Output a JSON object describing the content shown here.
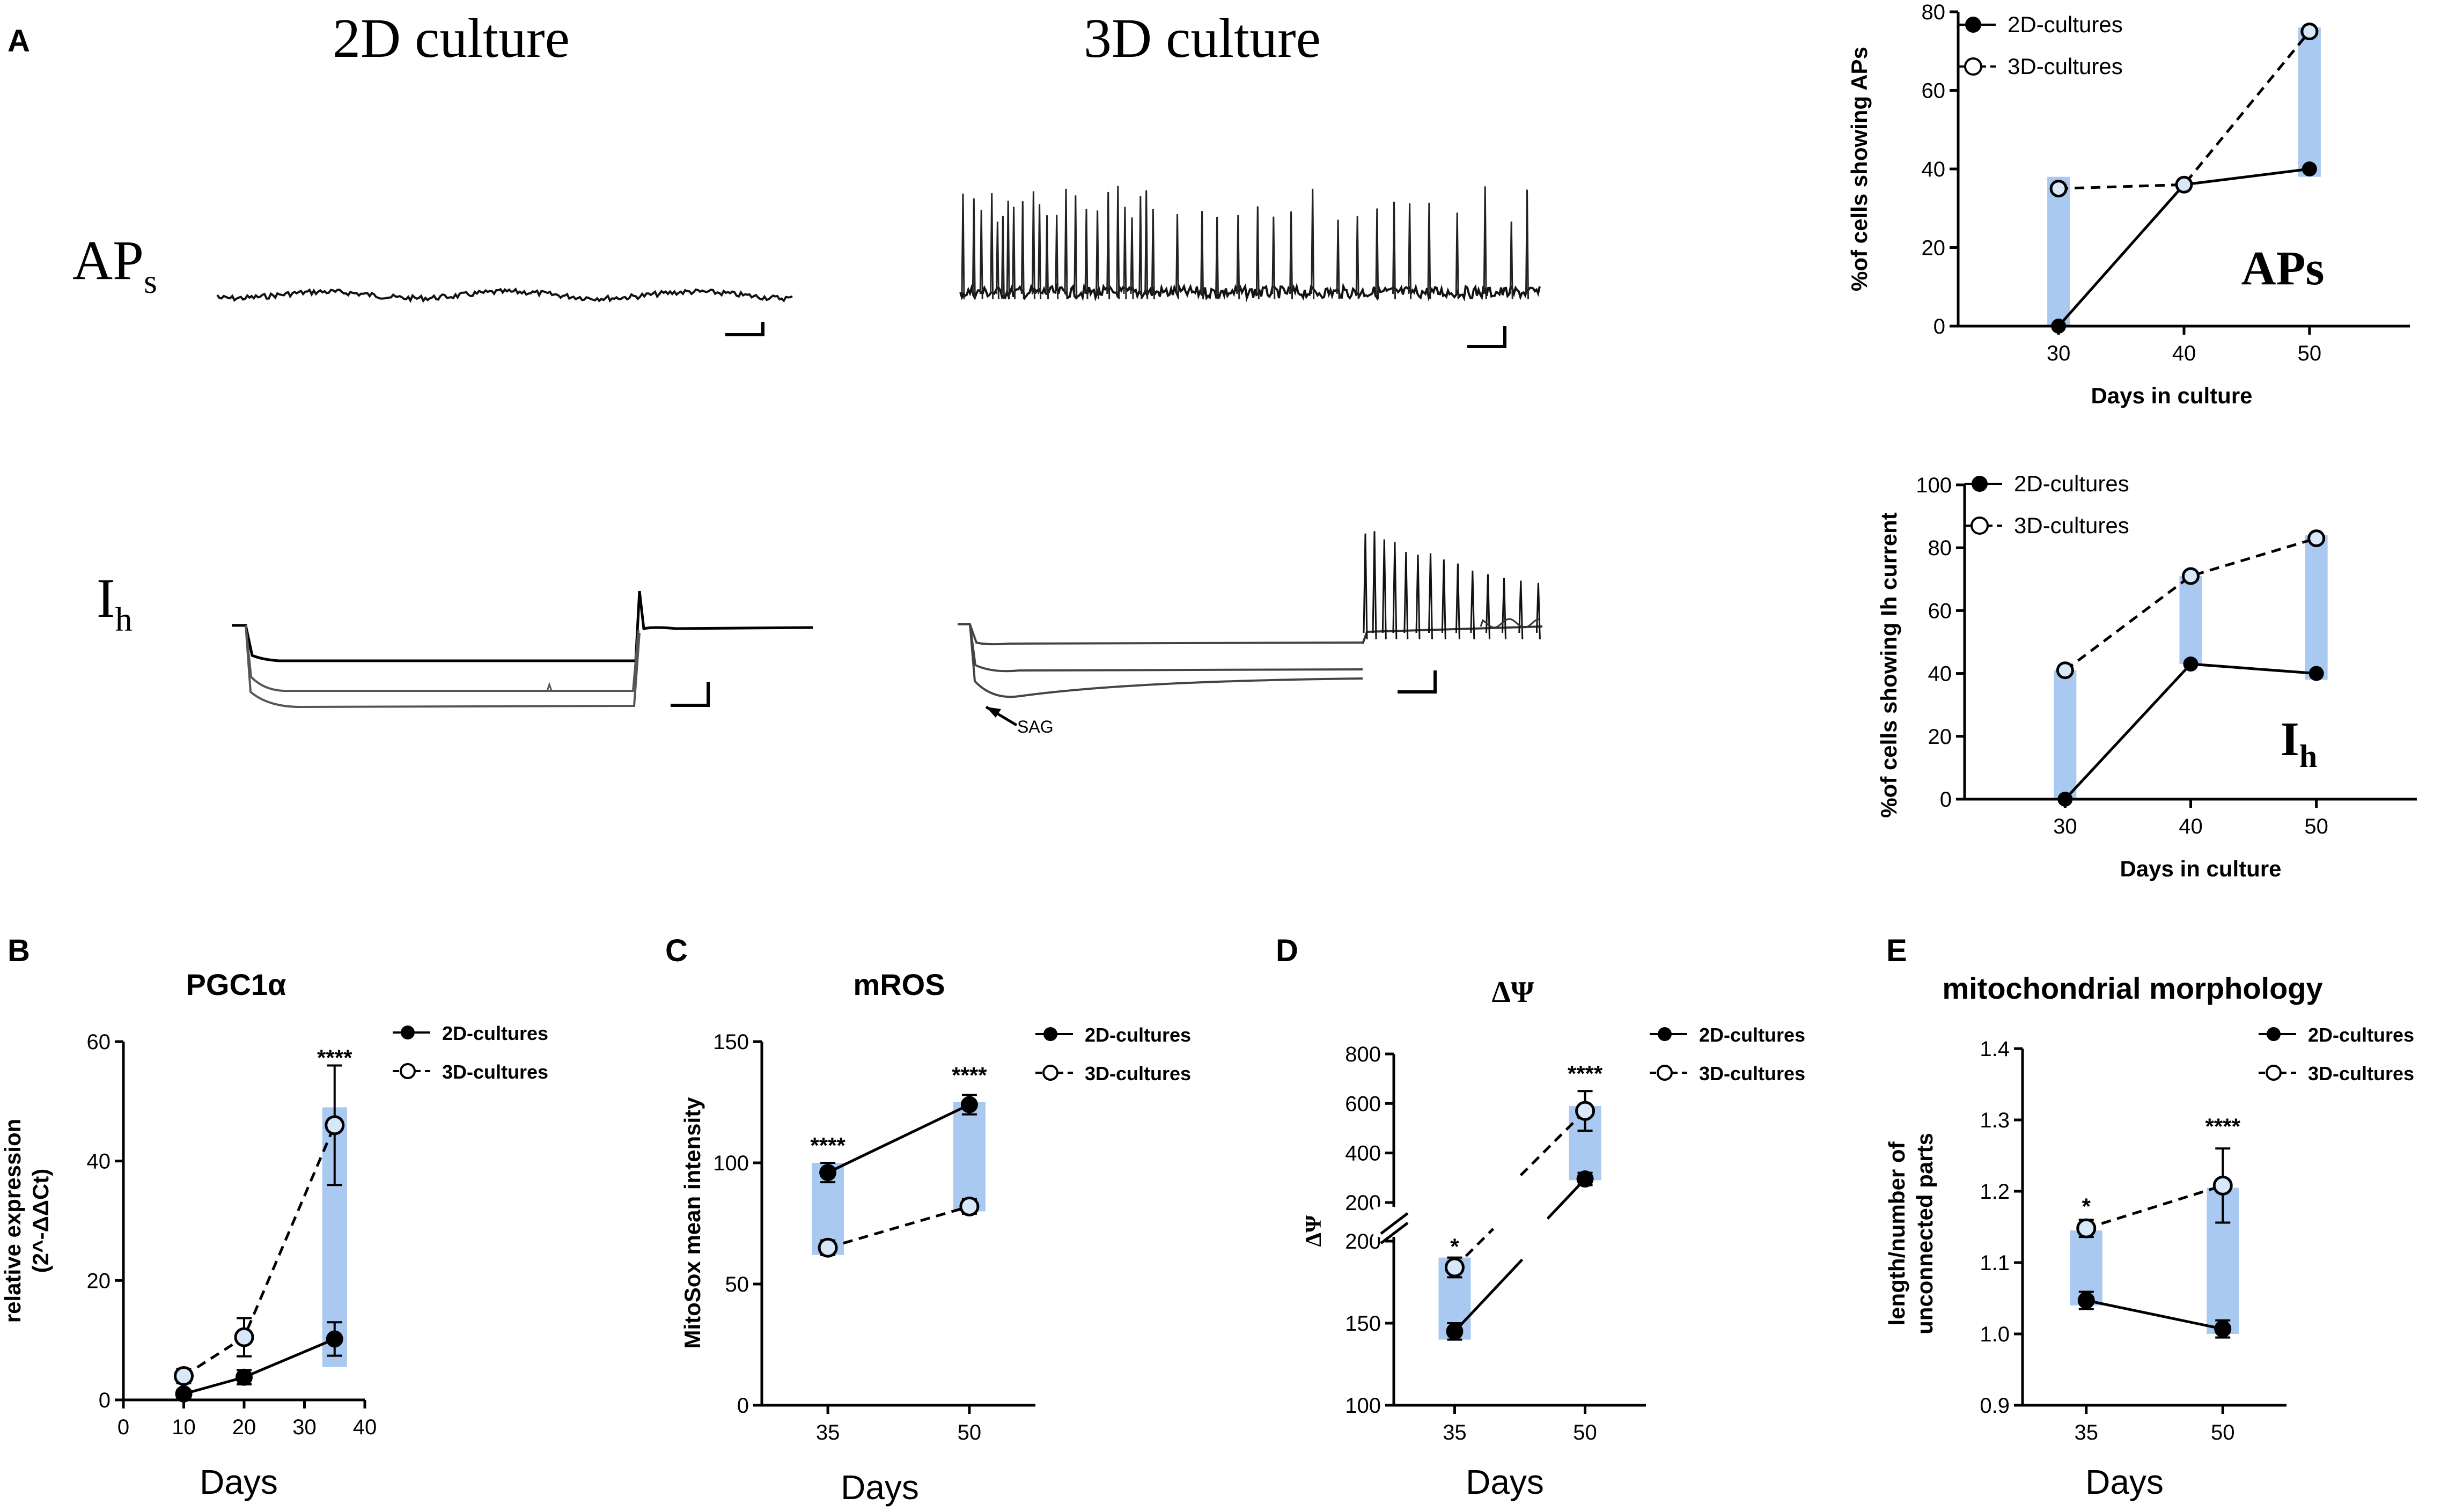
{
  "panel_labels": {
    "A": "A",
    "B": "B",
    "C": "C",
    "D": "D",
    "E": "E"
  },
  "traces": {
    "culture_2d": "2D culture",
    "culture_3d": "3D culture",
    "aps_row": "AP",
    "aps_sub": "s",
    "ih_row": "I",
    "ih_sub": "h",
    "sag": "SAG"
  },
  "colors": {
    "highlight": "#a9c9f0",
    "line": "#000000",
    "open_fill": "#d8e8f8"
  },
  "chart_data": [
    {
      "id": "aps",
      "type": "line",
      "title": "APs",
      "xlabel": "Days in culture",
      "ylabel": "%of cells showing APs",
      "x": [
        30,
        40,
        50
      ],
      "xlim": [
        22,
        58
      ],
      "ylim": [
        0,
        80
      ],
      "xticks": [
        "30",
        "40",
        "50"
      ],
      "yticks": [
        "0",
        "20",
        "40",
        "60",
        "80"
      ],
      "series": [
        {
          "name": "2D-cultures",
          "style": "solid-filled",
          "values": [
            0,
            36,
            40
          ]
        },
        {
          "name": "3D-cultures",
          "style": "dashed-open",
          "values": [
            35,
            36,
            75
          ]
        }
      ],
      "highlights": [
        {
          "x": 30,
          "from": 0,
          "to": 38
        },
        {
          "x": 50,
          "from": 38,
          "to": 76
        }
      ]
    },
    {
      "id": "ih",
      "type": "line",
      "title": "I",
      "title_sub": "h",
      "xlabel": "Days in culture",
      "ylabel": "%of cells showing Ih current",
      "x": [
        30,
        40,
        50
      ],
      "xlim": [
        22,
        58
      ],
      "ylim": [
        0,
        100
      ],
      "xticks": [
        "30",
        "40",
        "50"
      ],
      "yticks": [
        "0",
        "20",
        "40",
        "60",
        "80",
        "100"
      ],
      "series": [
        {
          "name": "2D-cultures",
          "style": "solid-filled",
          "values": [
            0,
            43,
            40
          ]
        },
        {
          "name": "3D-cultures",
          "style": "dashed-open",
          "values": [
            41,
            71,
            83
          ]
        }
      ],
      "highlights": [
        {
          "x": 30,
          "from": 0,
          "to": 41
        },
        {
          "x": 40,
          "from": 43,
          "to": 71
        },
        {
          "x": 50,
          "from": 38,
          "to": 84
        }
      ]
    },
    {
      "id": "pgc",
      "type": "line",
      "title": "PGC1α",
      "xlabel": "Days",
      "ylabel": "relative expression",
      "ylabel2": "(2^-ΔΔCt)",
      "x": [
        10,
        20,
        35
      ],
      "xlim": [
        0,
        40
      ],
      "ylim": [
        0,
        60
      ],
      "xticks": [
        "0",
        "10",
        "20",
        "30",
        "40"
      ],
      "yticks": [
        "0",
        "20",
        "40",
        "60"
      ],
      "series": [
        {
          "name": "2D-cultures",
          "style": "solid-filled",
          "values": [
            1,
            3.8,
            10.2
          ],
          "errors": [
            0.6,
            1.2,
            2.8
          ]
        },
        {
          "name": "3D-cultures",
          "style": "dashed-open",
          "values": [
            4,
            10.5,
            46
          ],
          "errors": [
            1.2,
            3.2,
            10
          ]
        }
      ],
      "highlights": [
        {
          "x": 35,
          "from": 5.5,
          "to": 49
        }
      ],
      "annotations": [
        {
          "text": "****",
          "x": 35,
          "y": 56
        }
      ]
    },
    {
      "id": "mros",
      "type": "line",
      "title": "mROS",
      "xlabel": "Days",
      "ylabel": "MitoSox mean intensity",
      "x": [
        35,
        50
      ],
      "xlim": [
        28,
        57
      ],
      "ylim": [
        0,
        150
      ],
      "xticks": [
        "35",
        "50"
      ],
      "yticks": [
        "0",
        "50",
        "100",
        "150"
      ],
      "series": [
        {
          "name": "2D-cultures",
          "style": "solid-filled",
          "values": [
            96,
            124
          ],
          "errors": [
            4,
            4
          ]
        },
        {
          "name": "3D-cultures",
          "style": "dashed-open",
          "values": [
            65,
            82
          ],
          "errors": [
            3,
            3
          ]
        }
      ],
      "highlights": [
        {
          "x": 35,
          "from": 62,
          "to": 100
        },
        {
          "x": 50,
          "from": 80,
          "to": 125
        }
      ],
      "annotations": [
        {
          "text": "****",
          "x": 35,
          "y": 104
        },
        {
          "text": "****",
          "x": 50,
          "y": 133
        }
      ]
    },
    {
      "id": "dpsi",
      "type": "line",
      "title": "ΔΨ",
      "xlabel": "Days",
      "ylabel": "ΔΨ",
      "x": [
        35,
        50
      ],
      "xlim": [
        28,
        57
      ],
      "ylim": [
        100,
        800
      ],
      "axis_break": [
        200,
        200
      ],
      "xticks": [
        "35",
        "50"
      ],
      "yticks": [
        "100",
        "150",
        "200",
        "200",
        "400",
        "600",
        "800"
      ],
      "series": [
        {
          "name": "2D-cultures",
          "style": "solid-filled",
          "values": [
            145,
            295
          ],
          "errors": [
            5,
            25
          ]
        },
        {
          "name": "3D-cultures",
          "style": "dashed-open",
          "values": [
            184,
            570
          ],
          "errors": [
            6,
            80
          ]
        }
      ],
      "highlights": [
        {
          "x": 35,
          "from": 140,
          "to": 190
        },
        {
          "x": 50,
          "from": 290,
          "to": 590
        }
      ],
      "annotations": [
        {
          "text": "*",
          "x": 35,
          "y": 192
        },
        {
          "text": "****",
          "x": 50,
          "y": 690
        }
      ]
    },
    {
      "id": "morph",
      "type": "line",
      "title": "mitochondrial morphology",
      "xlabel": "Days",
      "ylabel": "length/number of",
      "ylabel2": "unconnected parts",
      "x": [
        35,
        50
      ],
      "xlim": [
        28,
        57
      ],
      "ylim": [
        0.9,
        1.4
      ],
      "xticks": [
        "35",
        "50"
      ],
      "yticks": [
        "0.9",
        "1.0",
        "1.1",
        "1.2",
        "1.3",
        "1.4"
      ],
      "series": [
        {
          "name": "2D-cultures",
          "style": "solid-filled",
          "values": [
            1.047,
            1.007
          ],
          "errors": [
            0.012,
            0.012
          ]
        },
        {
          "name": "3D-cultures",
          "style": "dashed-open",
          "values": [
            1.148,
            1.208
          ],
          "errors": [
            0.012,
            0.052
          ]
        }
      ],
      "highlights": [
        {
          "x": 35,
          "from": 1.04,
          "to": 1.145
        },
        {
          "x": 50,
          "from": 1.0,
          "to": 1.205
        }
      ],
      "annotations": [
        {
          "text": "*",
          "x": 35,
          "y": 1.168
        },
        {
          "text": "****",
          "x": 50,
          "y": 1.28
        }
      ]
    }
  ]
}
